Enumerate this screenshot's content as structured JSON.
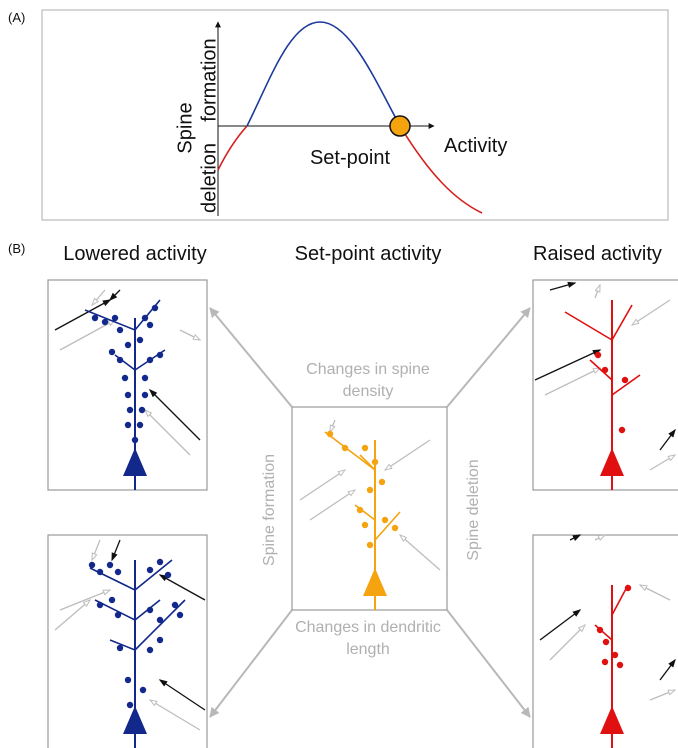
{
  "panel_a": {
    "label": "(A)",
    "y_axis_label": "Spine",
    "y_positive_label": "formation",
    "y_negative_label": "deletion",
    "x_axis_label": "Activity",
    "point_label": "Set-point"
  },
  "panel_b": {
    "label": "(B)",
    "column_titles": [
      "Lowered activity",
      "Set-point activity",
      "Raised activity"
    ],
    "arrow_labels": {
      "top": [
        "Changes in spine",
        "density"
      ],
      "bottom": [
        "Changes in dendritic",
        "length"
      ],
      "left": "Spine formation",
      "right": "Spine deletion"
    }
  }
}
